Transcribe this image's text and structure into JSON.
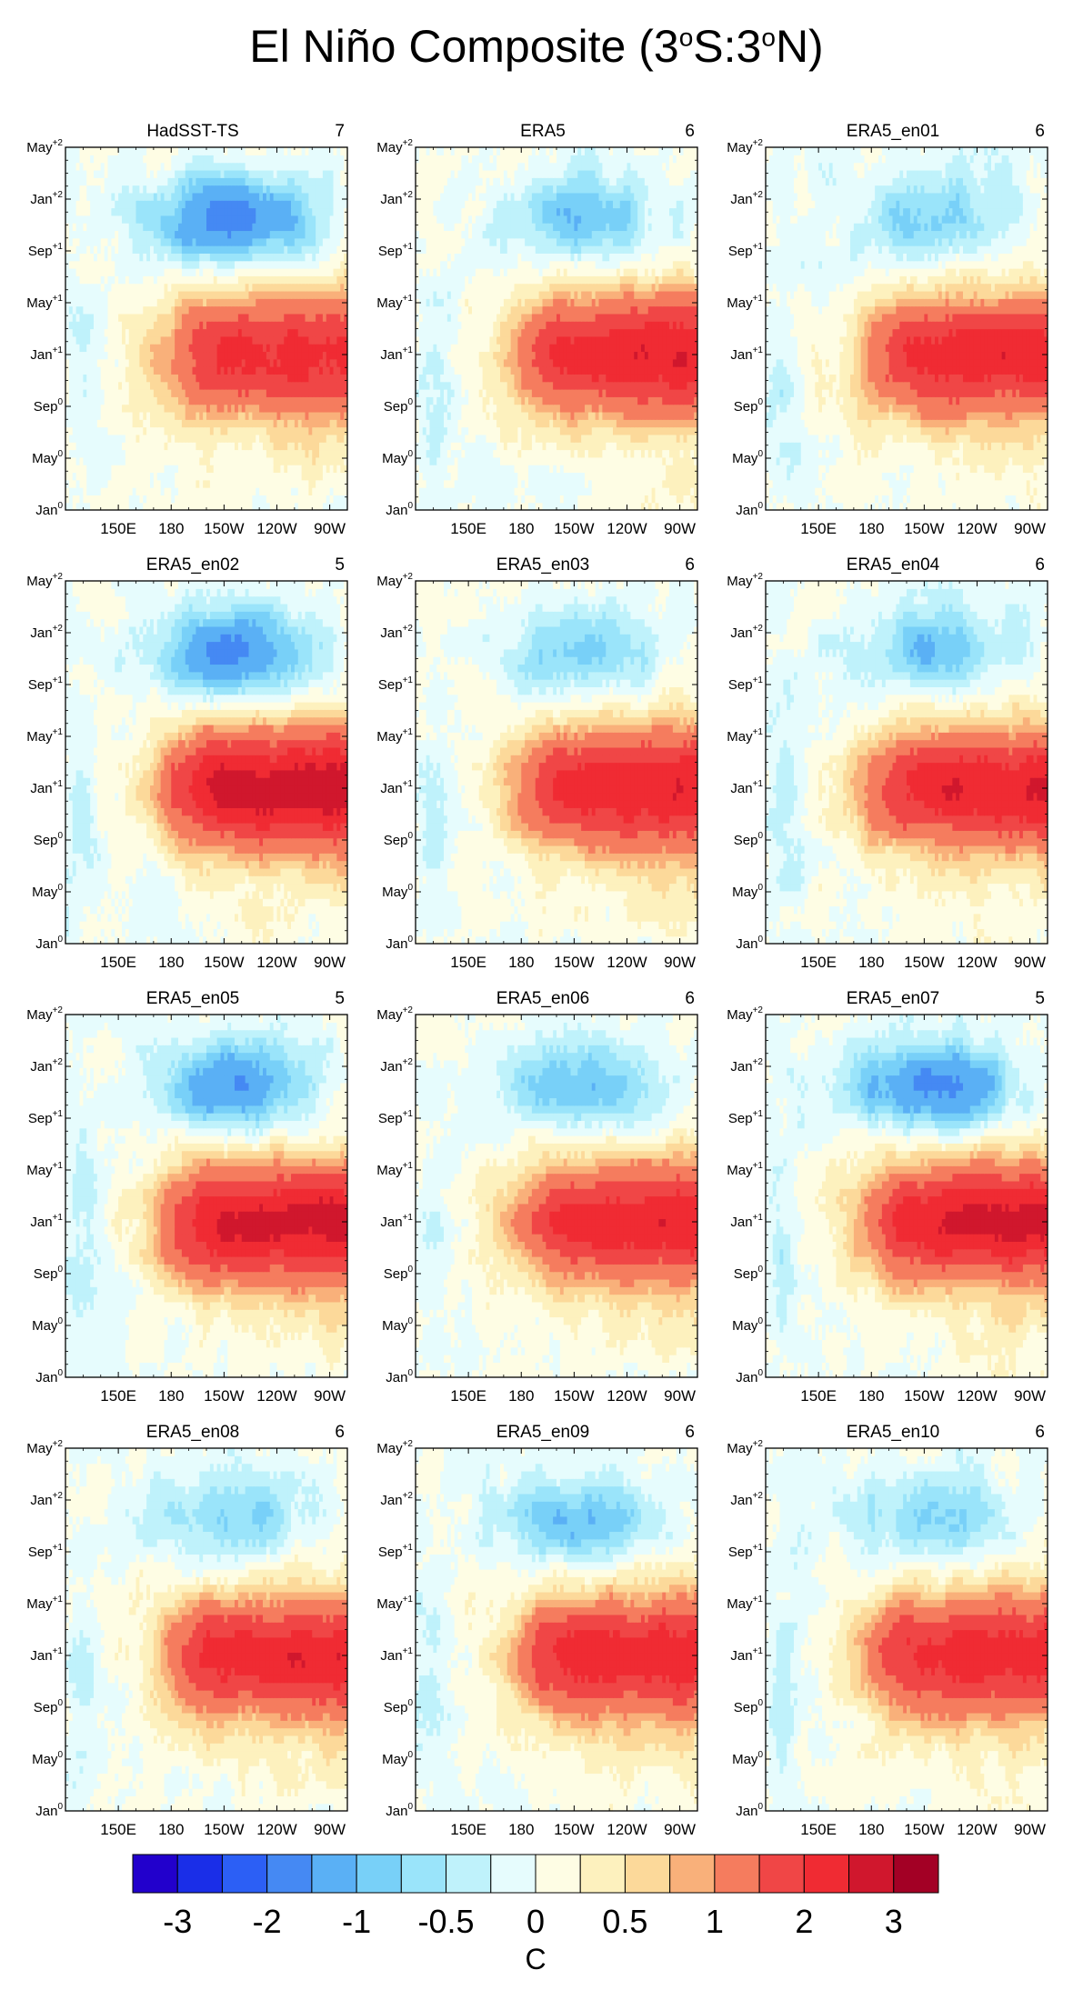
{
  "chart_data": {
    "type": "heatmap",
    "title": {
      "base": "El Niño Composite (3",
      "deg1": "o",
      "mid": "S:3",
      "deg2": "o",
      "tail": "N)"
    },
    "ytick_labels": [
      {
        "base": "Jan",
        "sup": "0"
      },
      {
        "base": "May",
        "sup": "0"
      },
      {
        "base": "Sep",
        "sup": "0"
      },
      {
        "base": "Jan",
        "sup": "+1"
      },
      {
        "base": "May",
        "sup": "+1"
      },
      {
        "base": "Sep",
        "sup": "+1"
      },
      {
        "base": "Jan",
        "sup": "+2"
      },
      {
        "base": "May",
        "sup": "+2"
      }
    ],
    "xtick_labels": [
      "150E",
      "180",
      "150W",
      "120W",
      "90W"
    ],
    "xtick_lons": [
      150,
      180,
      210,
      240,
      270
    ],
    "lon_range": [
      120,
      280
    ],
    "month_range": [
      0,
      28
    ],
    "panels": [
      {
        "name": "HadSST-TS",
        "count": "7",
        "warm_amp": 2.2,
        "cold_amp": -1.8,
        "seed": 1
      },
      {
        "name": "ERA5",
        "count": "6",
        "warm_amp": 2.4,
        "cold_amp": -1.0,
        "seed": 2
      },
      {
        "name": "ERA5_en01",
        "count": "6",
        "warm_amp": 2.3,
        "cold_amp": -0.9,
        "seed": 3
      },
      {
        "name": "ERA5_en02",
        "count": "5",
        "warm_amp": 2.8,
        "cold_amp": -1.6,
        "seed": 4
      },
      {
        "name": "ERA5_en03",
        "count": "6",
        "warm_amp": 2.4,
        "cold_amp": -0.9,
        "seed": 5
      },
      {
        "name": "ERA5_en04",
        "count": "6",
        "warm_amp": 2.4,
        "cold_amp": -1.0,
        "seed": 6
      },
      {
        "name": "ERA5_en05",
        "count": "5",
        "warm_amp": 2.7,
        "cold_amp": -1.5,
        "seed": 7
      },
      {
        "name": "ERA5_en06",
        "count": "6",
        "warm_amp": 2.3,
        "cold_amp": -1.0,
        "seed": 8
      },
      {
        "name": "ERA5_en07",
        "count": "5",
        "warm_amp": 2.6,
        "cold_amp": -1.7,
        "seed": 9
      },
      {
        "name": "ERA5_en08",
        "count": "6",
        "warm_amp": 2.4,
        "cold_amp": -0.8,
        "seed": 10
      },
      {
        "name": "ERA5_en09",
        "count": "6",
        "warm_amp": 2.3,
        "cold_amp": -1.0,
        "seed": 11
      },
      {
        "name": "ERA5_en10",
        "count": "6",
        "warm_amp": 2.3,
        "cold_amp": -0.8,
        "seed": 12
      }
    ],
    "colorbar": {
      "levels": [
        -3.5,
        -3,
        -2.5,
        -2,
        -1.5,
        -1,
        -0.75,
        -0.5,
        -0.25,
        0,
        0.25,
        0.5,
        0.75,
        1,
        1.5,
        2,
        2.5,
        3,
        3.5
      ],
      "colors": [
        "#2200cc",
        "#1a2ee8",
        "#2c5ff5",
        "#4589f3",
        "#5ab0f5",
        "#78d0f8",
        "#9ae4fa",
        "#bff2fb",
        "#e6fcfd",
        "#fefde4",
        "#fdf1be",
        "#fcd99a",
        "#f9b07a",
        "#f57c5e",
        "#f04646",
        "#f02b33",
        "#d0172d",
        "#a30025"
      ],
      "labels": [
        "-3",
        "-2",
        "-1",
        "-0.5",
        "0",
        "0.5",
        "1",
        "2",
        "3"
      ],
      "label_level_index": [
        1,
        3,
        5,
        7,
        9,
        11,
        13,
        15,
        17
      ],
      "units": "C"
    }
  }
}
